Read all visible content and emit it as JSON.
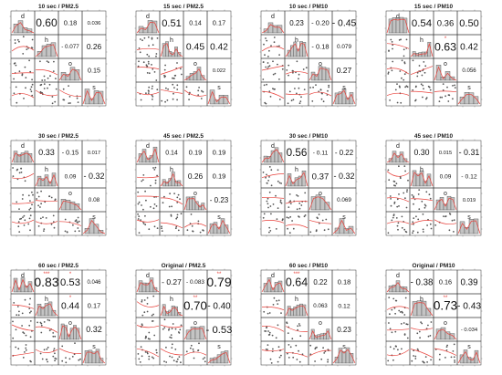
{
  "figure": {
    "panels": [
      {
        "title": "10 sec / PM2.5"
      },
      {
        "title": "15 sec / PM2.5"
      },
      {
        "title": "10 sec / PM10"
      },
      {
        "title": "15 sec / PM10"
      },
      {
        "title": "30 sec / PM2.5"
      },
      {
        "title": "45 sec / PM2.5"
      },
      {
        "title": "30 sec / PM10"
      },
      {
        "title": "45 sec / PM10"
      },
      {
        "title": "60 sec / PM2.5"
      },
      {
        "title": "Original / PM2.5"
      },
      {
        "title": "60 sec / PM10"
      },
      {
        "title": "Original / PM10"
      }
    ],
    "diag_labels": [
      "d",
      "h",
      "o",
      "s"
    ]
  },
  "chart_data": [
    {
      "type": "scatter",
      "title": "10 sec / PM2.5",
      "variables": [
        "d",
        "h",
        "o",
        "s"
      ],
      "correlations": {
        "d-h": "0.60",
        "d-o": "0.18",
        "d-s": "0.036",
        "h-o": "- 0.077",
        "h-s": "0.26",
        "o-s": "0.15"
      },
      "significance": {
        "d-h": "",
        "d-o": "",
        "d-s": "",
        "h-o": "",
        "h-s": "",
        "o-s": ""
      }
    },
    {
      "type": "scatter",
      "title": "15 sec / PM2.5",
      "variables": [
        "d",
        "h",
        "o",
        "s"
      ],
      "correlations": {
        "d-h": "0.51",
        "d-o": "0.14",
        "d-s": "0.17",
        "h-o": "0.45",
        "h-s": "0.42",
        "o-s": "0.022"
      },
      "significance": {
        "d-h": "",
        "d-o": "",
        "d-s": "",
        "h-o": "",
        "h-s": "",
        "o-s": ""
      }
    },
    {
      "type": "scatter",
      "title": "10 sec / PM10",
      "variables": [
        "d",
        "h",
        "o",
        "s"
      ],
      "correlations": {
        "d-h": "0.23",
        "d-o": "- 0.20",
        "d-s": "- 0.45",
        "h-o": "- 0.18",
        "h-s": "0.079",
        "o-s": "0.27"
      },
      "significance": {
        "d-h": "",
        "d-o": "",
        "d-s": "",
        "h-o": "",
        "h-s": "",
        "o-s": ""
      }
    },
    {
      "type": "scatter",
      "title": "15 sec / PM10",
      "variables": [
        "d",
        "h",
        "o",
        "s"
      ],
      "correlations": {
        "d-h": "0.54",
        "d-o": "0.36",
        "d-s": "0.50",
        "h-o": "0.63",
        "h-s": "0.42",
        "o-s": "0.056"
      },
      "significance": {
        "d-h": "",
        "d-o": "",
        "d-s": "",
        "h-o": "*",
        "h-s": "",
        "o-s": ""
      }
    },
    {
      "type": "scatter",
      "title": "30 sec / PM2.5",
      "variables": [
        "d",
        "h",
        "o",
        "s"
      ],
      "correlations": {
        "d-h": "0.33",
        "d-o": "- 0.15",
        "d-s": "0.017",
        "h-o": "0.09",
        "h-s": "- 0.32",
        "o-s": "0.08"
      },
      "significance": {
        "d-h": "",
        "d-o": "",
        "d-s": "",
        "h-o": "",
        "h-s": "",
        "o-s": ""
      }
    },
    {
      "type": "scatter",
      "title": "45 sec / PM2.5",
      "variables": [
        "d",
        "h",
        "o",
        "s"
      ],
      "correlations": {
        "d-h": "0.14",
        "d-o": "0.19",
        "d-s": "0.19",
        "h-o": "0.26",
        "h-s": "0.19",
        "o-s": "- 0.23"
      },
      "significance": {
        "d-h": "",
        "d-o": "",
        "d-s": "",
        "h-o": "",
        "h-s": "",
        "o-s": ""
      }
    },
    {
      "type": "scatter",
      "title": "30 sec / PM10",
      "variables": [
        "d",
        "h",
        "o",
        "s"
      ],
      "correlations": {
        "d-h": "0.56",
        "d-o": "- 0.11",
        "d-s": "- 0.22",
        "h-o": "0.37",
        "h-s": "- 0.32",
        "o-s": "0.069"
      },
      "significance": {
        "d-h": "",
        "d-o": "",
        "d-s": "",
        "h-o": "",
        "h-s": "",
        "o-s": ""
      }
    },
    {
      "type": "scatter",
      "title": "45 sec / PM10",
      "variables": [
        "d",
        "h",
        "o",
        "s"
      ],
      "correlations": {
        "d-h": "0.30",
        "d-o": "0.015",
        "d-s": "- 0.31",
        "h-o": "0.09",
        "h-s": "- 0.12",
        "o-s": "0.019"
      },
      "significance": {
        "d-h": "",
        "d-o": "",
        "d-s": "",
        "h-o": "",
        "h-s": "",
        "o-s": ""
      }
    },
    {
      "type": "scatter",
      "title": "60 sec / PM2.5",
      "variables": [
        "d",
        "h",
        "o",
        "s"
      ],
      "correlations": {
        "d-h": "0.83",
        "d-o": "0.53",
        "d-s": "0.046",
        "h-o": "0.44",
        "h-s": "0.17",
        "o-s": "0.32"
      },
      "significance": {
        "d-h": "***",
        "d-o": "*",
        "d-s": "",
        "h-o": "*",
        "h-s": "",
        "o-s": ""
      }
    },
    {
      "type": "scatter",
      "title": "Original / PM2.5",
      "variables": [
        "d",
        "h",
        "o",
        "s"
      ],
      "correlations": {
        "d-h": "- 0.27",
        "d-o": "- 0.083",
        "d-s": "0.79",
        "h-o": "0.70",
        "h-s": "- 0.40",
        "o-s": "- 0.53"
      },
      "significance": {
        "d-h": "",
        "d-o": "",
        "d-s": "**",
        "h-o": "**",
        "h-s": "",
        "o-s": ""
      }
    },
    {
      "type": "scatter",
      "title": "60 sec / PM10",
      "variables": [
        "d",
        "h",
        "o",
        "s"
      ],
      "correlations": {
        "d-h": "0.64",
        "d-o": "0.22",
        "d-s": "0.18",
        "h-o": "0.063",
        "h-s": "0.12",
        "o-s": "0.23"
      },
      "significance": {
        "d-h": "***",
        "d-o": "",
        "d-s": "",
        "h-o": "",
        "h-s": "",
        "o-s": ""
      }
    },
    {
      "type": "scatter",
      "title": "Original / PM10",
      "variables": [
        "d",
        "h",
        "o",
        "s"
      ],
      "correlations": {
        "d-h": "- 0.38",
        "d-o": "0.16",
        "d-s": "0.39",
        "h-o": "0.73",
        "h-s": "- 0.43",
        "o-s": "- 0.034"
      },
      "significance": {
        "d-h": "",
        "d-o": "",
        "d-s": "",
        "h-o": "**",
        "h-s": "",
        "o-s": ""
      }
    }
  ],
  "colors": {
    "fit_line": "#e8403a",
    "hist_fill": "#c4c4c4",
    "point": "#555555",
    "grid_border": "#333333",
    "sig_star": "#e8403a"
  }
}
